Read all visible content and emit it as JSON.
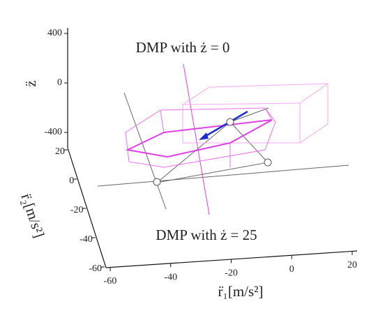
{
  "chart_data": {
    "type": "3d-wireframe",
    "annotations": [
      "DMP with ż = 0",
      "DMP with ż = 25"
    ],
    "zaxis": {
      "label": "z̈",
      "lim": [
        -400,
        400
      ],
      "ticks": [
        400,
        0,
        -400
      ]
    },
    "r2axis": {
      "label": "r̈₂[m/s²]",
      "lim": [
        -60,
        20
      ],
      "ticks": [
        20,
        0,
        -20,
        -40,
        -60
      ]
    },
    "r1axis": {
      "label": "r̈₁[m/s²]",
      "lim": [
        -60,
        20
      ],
      "ticks": [
        -60,
        -40,
        -20,
        0,
        20
      ]
    }
  }
}
